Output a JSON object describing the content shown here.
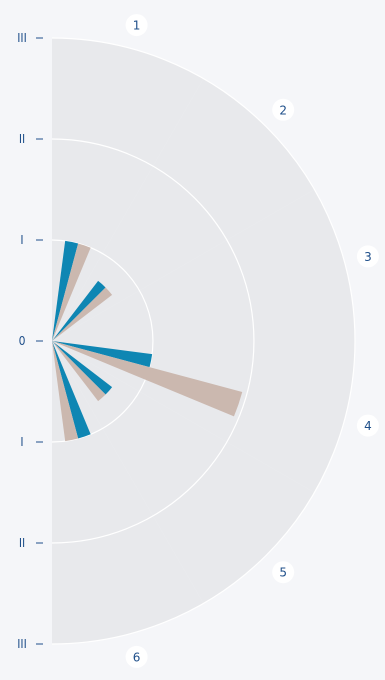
{
  "chart_data": {
    "type": "radial-bar",
    "title": "",
    "radial_axis": {
      "ticks": [
        "0",
        "I",
        "II",
        "III"
      ],
      "range": [
        0,
        3
      ]
    },
    "categories": [
      "1",
      "2",
      "3",
      "4",
      "5",
      "6"
    ],
    "background_max": 3,
    "series": [
      {
        "color": "#0e86b3",
        "values": [
          1.0,
          0.75,
          0.0,
          1.0,
          0.75,
          1.0
        ]
      },
      {
        "color": "#cbb8af",
        "values": [
          1.0,
          0.75,
          0.0,
          1.95,
          0.75,
          1.0
        ]
      }
    ],
    "grid": true,
    "colors": {
      "background_sector": "#e8e9ec",
      "grid": "#ffffff",
      "text": "#1f4f8a",
      "label_bubble": "#ffffff"
    }
  }
}
